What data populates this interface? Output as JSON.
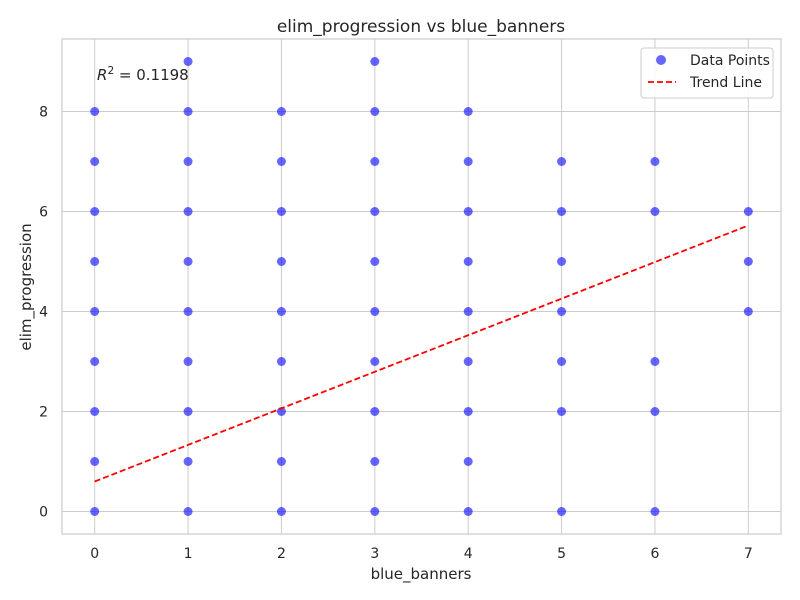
{
  "chart_data": {
    "type": "scatter",
    "title": "elim_progression vs blue_banners",
    "xlabel": "blue_banners",
    "ylabel": "elim_progression",
    "xlim": [
      -0.35,
      7.35
    ],
    "ylim": [
      -0.45,
      9.45
    ],
    "xticks": [
      0,
      1,
      2,
      3,
      4,
      5,
      6,
      7
    ],
    "yticks": [
      0,
      2,
      4,
      6,
      8
    ],
    "grid": true,
    "legend_position": "top-right",
    "annotation_prefix": "R",
    "annotation_sup": "2",
    "annotation_value": " = 0.1198",
    "colors": {
      "points": "#0000ff",
      "trend": "#ff0000",
      "grid": "#cccccc",
      "axes": "#cccccc"
    },
    "series": [
      {
        "name": "Data Points",
        "points": [
          [
            0,
            0
          ],
          [
            0,
            1
          ],
          [
            0,
            2
          ],
          [
            0,
            3
          ],
          [
            0,
            4
          ],
          [
            0,
            5
          ],
          [
            0,
            6
          ],
          [
            0,
            7
          ],
          [
            0,
            8
          ],
          [
            1,
            0
          ],
          [
            1,
            1
          ],
          [
            1,
            2
          ],
          [
            1,
            3
          ],
          [
            1,
            4
          ],
          [
            1,
            5
          ],
          [
            1,
            6
          ],
          [
            1,
            7
          ],
          [
            1,
            8
          ],
          [
            1,
            9
          ],
          [
            2,
            0
          ],
          [
            2,
            1
          ],
          [
            2,
            2
          ],
          [
            2,
            3
          ],
          [
            2,
            4
          ],
          [
            2,
            5
          ],
          [
            2,
            6
          ],
          [
            2,
            7
          ],
          [
            2,
            8
          ],
          [
            3,
            0
          ],
          [
            3,
            1
          ],
          [
            3,
            2
          ],
          [
            3,
            3
          ],
          [
            3,
            4
          ],
          [
            3,
            5
          ],
          [
            3,
            6
          ],
          [
            3,
            7
          ],
          [
            3,
            8
          ],
          [
            3,
            9
          ],
          [
            4,
            0
          ],
          [
            4,
            1
          ],
          [
            4,
            2
          ],
          [
            4,
            3
          ],
          [
            4,
            4
          ],
          [
            4,
            5
          ],
          [
            4,
            6
          ],
          [
            4,
            7
          ],
          [
            4,
            8
          ],
          [
            5,
            0
          ],
          [
            5,
            2
          ],
          [
            5,
            3
          ],
          [
            5,
            4
          ],
          [
            5,
            5
          ],
          [
            5,
            6
          ],
          [
            5,
            7
          ],
          [
            6,
            0
          ],
          [
            6,
            2
          ],
          [
            6,
            3
          ],
          [
            6,
            6
          ],
          [
            6,
            7
          ],
          [
            7,
            4
          ],
          [
            7,
            5
          ],
          [
            7,
            6
          ]
        ]
      },
      {
        "name": "Trend Line",
        "x": [
          0,
          7
        ],
        "y": [
          0.6,
          5.72
        ]
      }
    ]
  }
}
